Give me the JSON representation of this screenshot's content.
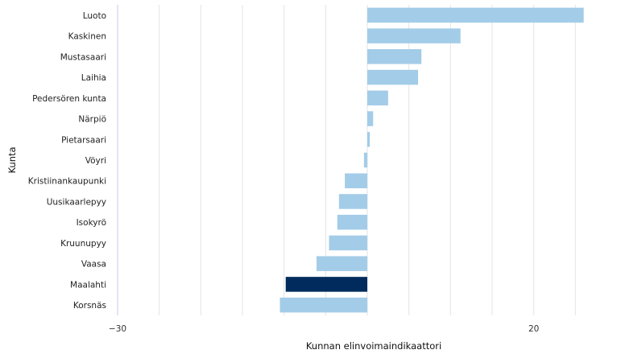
{
  "chart_data": {
    "type": "bar",
    "orientation": "horizontal",
    "xlabel": "Kunnan elinvoimaindikaattori",
    "ylabel": "Kunta",
    "xlim": [
      -30,
      30
    ],
    "xticks": [
      -30,
      20
    ],
    "grid": "vertical",
    "categories": [
      "Luoto",
      "Kaskinen",
      "Mustasaari",
      "Laihia",
      "Pedersören kunta",
      "Närpiö",
      "Pietarsaari",
      "Vöyri",
      "Kristiinankaupunki",
      "Uusikaarlepyy",
      "Isokyrö",
      "Kruunupyy",
      "Vaasa",
      "Maalahti",
      "Korsnäs"
    ],
    "values": [
      26,
      11.2,
      6.5,
      6.1,
      2.5,
      0.7,
      0.3,
      -0.4,
      -2.7,
      -3.4,
      -3.6,
      -4.6,
      -6.1,
      -9.8,
      -10.5
    ],
    "highlight": "Maalahti",
    "colors": {
      "bar": "#a3cce8",
      "highlight": "#002b5c",
      "grid": "#e3e3e3",
      "axis": "#c9c9ec"
    }
  }
}
